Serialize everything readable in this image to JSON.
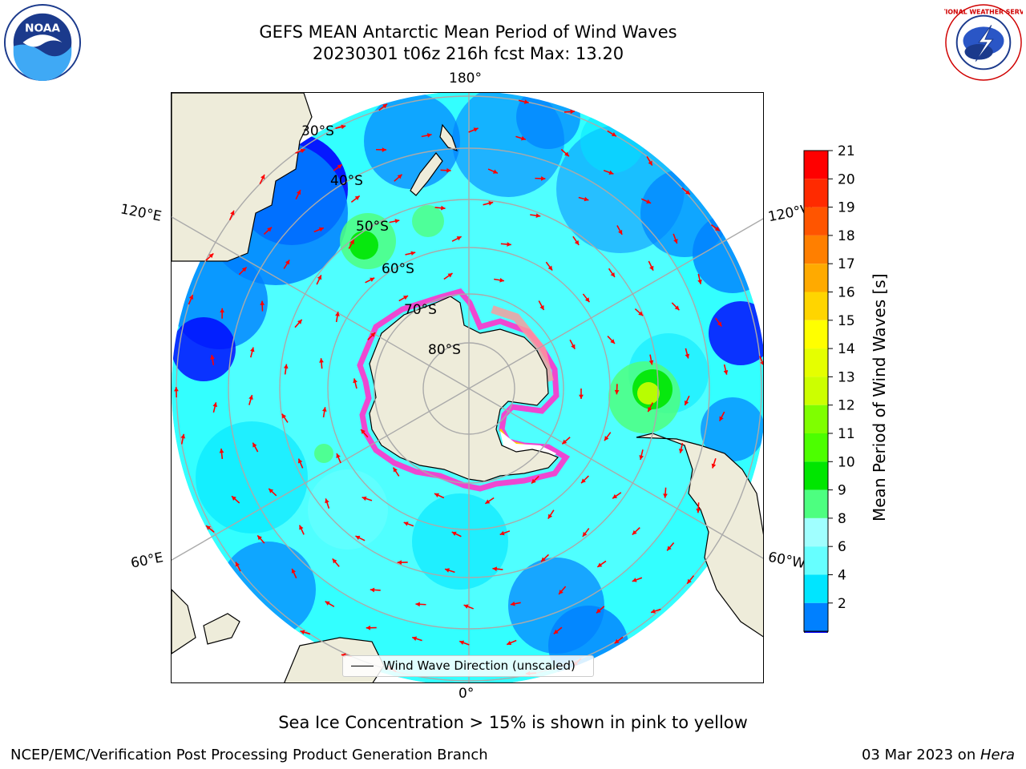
{
  "header": {
    "title_line1": "GEFS MEAN Antarctic Mean Period of Wind Waves",
    "title_line2": "20230301 t06z 216h fcst   Max: 13.20"
  },
  "logos": {
    "left": "noaa-logo",
    "left_text": "NOAA",
    "right": "nws-logo",
    "right_text": "NATIONAL WEATHER SERVICE"
  },
  "map": {
    "projection": "south-polar-stereographic",
    "lon_labels": {
      "top": "180°",
      "bottom": "0°",
      "upper_left": "120°E",
      "upper_right": "120°W",
      "lower_left": "60°E",
      "lower_right": "60°W"
    },
    "lat_labels": [
      "30°S",
      "40°S",
      "50°S",
      "60°S",
      "70°S",
      "80°S"
    ],
    "land_color": "#eeecda",
    "ocean_base_color": "#33ffff",
    "vector_color": "#ff0000",
    "gridline_color": "#aaaaaa",
    "legend_label": "Wind Wave Direction (unscaled)"
  },
  "colorbar": {
    "label": "Mean Period of Wind Waves [s]",
    "ticks": [
      "21",
      "20",
      "19",
      "18",
      "17",
      "16",
      "15",
      "14",
      "13",
      "12",
      "11",
      "10",
      "9",
      "8",
      "6",
      "4",
      "2"
    ],
    "colors": [
      "#ff0000",
      "#ff2a00",
      "#ff5500",
      "#ff7f00",
      "#ffaa00",
      "#ffd500",
      "#ffff00",
      "#e5ff00",
      "#ccff00",
      "#7fff00",
      "#4cff00",
      "#00e600",
      "#4dff80",
      "#a0ffff",
      "#66ffff",
      "#00e5ff",
      "#0080ff"
    ],
    "extend_color": "#0000ff"
  },
  "subtitle": "Sea Ice Concentration > 15% is shown in pink to yellow",
  "footer": {
    "left": "NCEP/EMC/Verification Post Processing Product Generation Branch",
    "right_date": "03 Mar 2023 on ",
    "right_host": "Hera"
  }
}
